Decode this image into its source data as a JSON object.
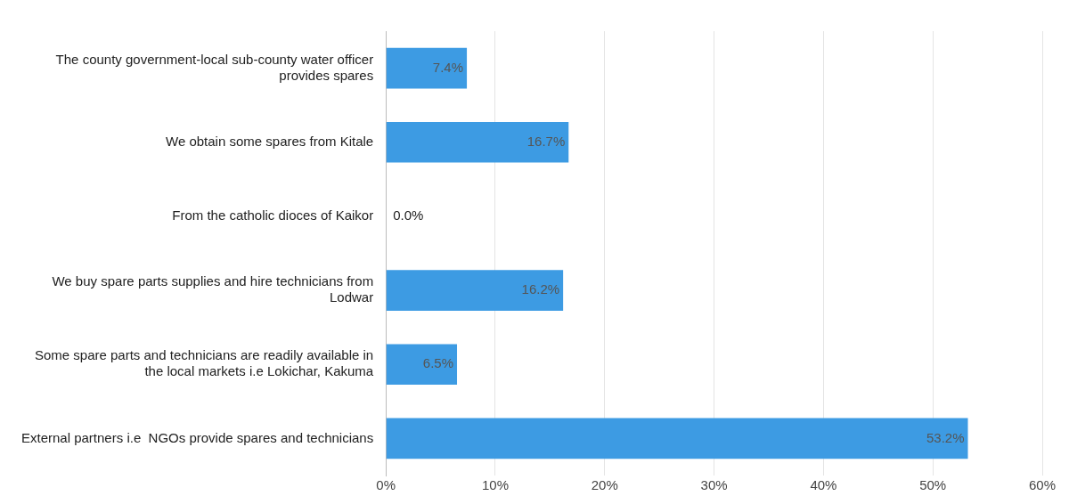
{
  "chart_data": {
    "type": "bar",
    "orientation": "horizontal",
    "categories": [
      "The county government-local sub-county water officer provides spares",
      "We obtain some spares from Kitale",
      "From the catholic dioces of Kaikor",
      "We buy spare parts supplies and hire technicians from Lodwar",
      "Some spare parts and technicians are readily available in the local markets i.e Lokichar, Kakuma",
      "External partners i.e  NGOs provide spares and technicians"
    ],
    "values": [
      7.4,
      16.7,
      0.0,
      16.2,
      6.5,
      53.2
    ],
    "value_labels": [
      "7.4%",
      "16.7%",
      "0.0%",
      "16.2%",
      "6.5%",
      "53.2%"
    ],
    "color": "#3d9be3",
    "xlim": [
      0,
      60
    ],
    "xticks": [
      {
        "value": 0,
        "label": "0%"
      },
      {
        "value": 10,
        "label": "10%"
      },
      {
        "value": 20,
        "label": "20%"
      },
      {
        "value": 30,
        "label": "30%"
      },
      {
        "value": 40,
        "label": "40%"
      },
      {
        "value": 50,
        "label": "50%"
      },
      {
        "value": 60,
        "label": "60%"
      }
    ],
    "grid": "x",
    "legend": false
  }
}
